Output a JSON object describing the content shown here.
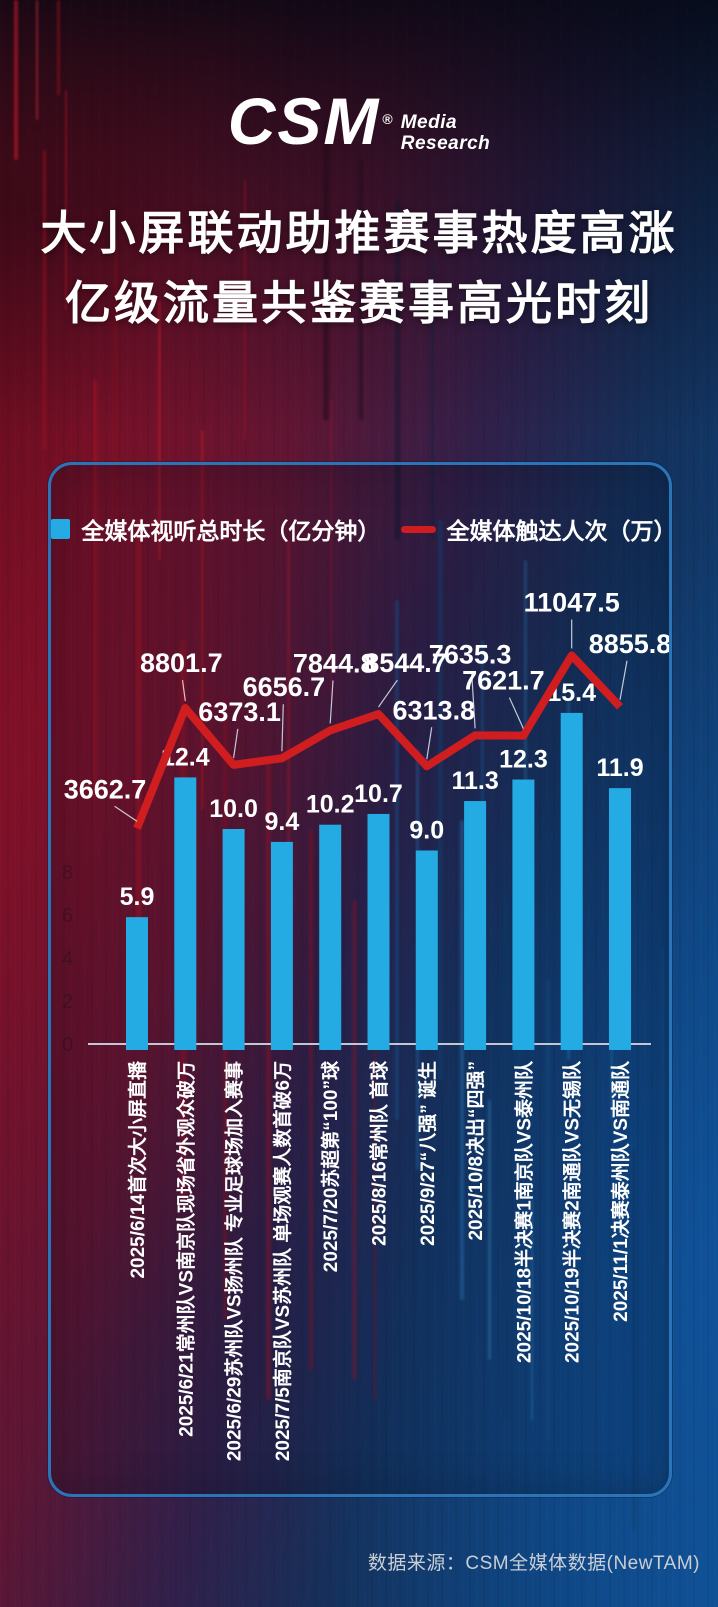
{
  "logo": {
    "text": "CSM",
    "mark": "®",
    "media": "Media",
    "research": "Research"
  },
  "title": {
    "line1": "大小屏联动助推赛事热度高涨",
    "line2": "亿级流量共鉴赛事高光时刻"
  },
  "legend": [
    {
      "label": "全媒体视听总时长（亿分钟）",
      "marker": "square",
      "color": "#25abe3"
    },
    {
      "label": "全媒体触达人次（万）",
      "marker": "line",
      "color": "#d01d1f"
    }
  ],
  "chart_data": {
    "type": "bar",
    "subtype": "bar+line combo",
    "categories": [
      "2025/6/14首次大小屏直播",
      "2025/6/21常州队VS南京队现场省外观众破万",
      "2025/6/29苏州队VS扬州队 专业足球场加入赛事",
      "2025/7/5南京队VS苏州队 单场观赛人数首破6万",
      "2025/7/20苏超第“100”球",
      "2025/8/16常州队 首球",
      "2025/9/27“八强” 诞生",
      "2025/10/8决出“四强”",
      "2025/10/18半决赛1南京队VS泰州队",
      "2025/10/19半决赛2南通队VS无锡队",
      "2025/11/1决赛泰州队VS南通队"
    ],
    "series": [
      {
        "name": "全媒体视听总时长（亿分钟）",
        "type": "bar",
        "color": "#25abe3",
        "values": [
          5.9,
          12.4,
          10.0,
          9.4,
          10.2,
          10.7,
          9.0,
          11.3,
          12.3,
          15.4,
          11.9
        ]
      },
      {
        "name": "全媒体触达人次（万）",
        "type": "line",
        "color": "#d01d1f",
        "values": [
          3662.7,
          8801.7,
          6373.1,
          6656.7,
          7844.8,
          8544.7,
          6313.8,
          7635.3,
          7621.7,
          11047.5,
          8855.8
        ]
      }
    ],
    "bar_axis_visible_ticks": [
      8,
      6,
      4,
      2,
      0
    ],
    "bar_ylim": [
      0,
      16
    ],
    "grid": false,
    "legend_position": "top"
  },
  "footer": {
    "source": "数据来源：CSM全媒体数据(NewTAM)"
  }
}
